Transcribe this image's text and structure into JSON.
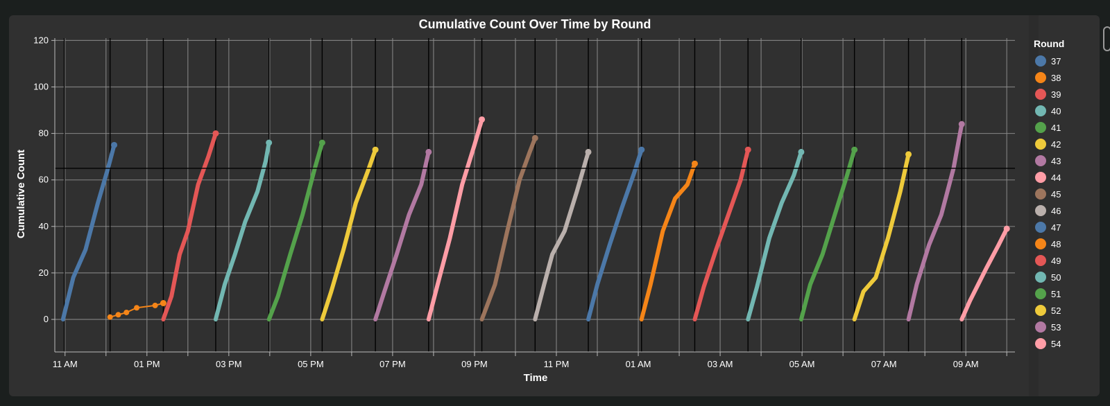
{
  "chart_data": {
    "type": "line",
    "title": "Cumulative Count Over Time by Round",
    "xlabel": "Time",
    "ylabel": "Cumulative Count",
    "x_unit": "hours from 10:00 AM",
    "xlim": [
      0.75,
      24.2
    ],
    "ylim": [
      -14,
      121
    ],
    "y_ticks": [
      0,
      20,
      40,
      60,
      80,
      100,
      120
    ],
    "x_ticks": [
      {
        "t": 1,
        "label": "11 AM"
      },
      {
        "t": 3,
        "label": "01 PM"
      },
      {
        "t": 5,
        "label": "03 PM"
      },
      {
        "t": 7,
        "label": "05 PM"
      },
      {
        "t": 9,
        "label": "07 PM"
      },
      {
        "t": 11,
        "label": "09 PM"
      },
      {
        "t": 13,
        "label": "11 PM"
      },
      {
        "t": 15,
        "label": "01 AM"
      },
      {
        "t": 17,
        "label": "03 AM"
      },
      {
        "t": 19,
        "label": "05 AM"
      },
      {
        "t": 21,
        "label": "07 AM"
      },
      {
        "t": 23,
        "label": "09 AM"
      }
    ],
    "grid": true,
    "reference_line_y": 65,
    "round_boundaries": [
      0.98,
      2.1,
      3.4,
      4.68,
      5.98,
      7.28,
      8.58,
      9.88,
      11.18,
      12.48,
      13.78,
      15.08,
      16.38,
      17.68,
      18.98,
      20.28,
      21.6,
      22.9
    ],
    "legend": {
      "title": "Round",
      "placement": "right"
    },
    "series": [
      {
        "name": "37",
        "color": "#4c78a8",
        "points": [
          [
            0.95,
            0
          ],
          [
            1.2,
            18
          ],
          [
            1.5,
            30
          ],
          [
            1.8,
            50
          ],
          [
            2.05,
            65
          ],
          [
            2.2,
            75
          ]
        ]
      },
      {
        "name": "38",
        "color": "#f58518",
        "points": [
          [
            2.1,
            1
          ],
          [
            2.3,
            2
          ],
          [
            2.5,
            3
          ],
          [
            2.75,
            5
          ],
          [
            3.2,
            6
          ],
          [
            3.4,
            7
          ]
        ]
      },
      {
        "name": "39",
        "color": "#e45756",
        "points": [
          [
            3.4,
            0
          ],
          [
            3.6,
            10
          ],
          [
            3.8,
            28
          ],
          [
            4.0,
            38
          ],
          [
            4.25,
            58
          ],
          [
            4.5,
            70
          ],
          [
            4.68,
            80
          ]
        ]
      },
      {
        "name": "40",
        "color": "#72b7b2",
        "points": [
          [
            4.68,
            0
          ],
          [
            4.9,
            15
          ],
          [
            5.15,
            28
          ],
          [
            5.4,
            42
          ],
          [
            5.7,
            55
          ],
          [
            5.9,
            68
          ],
          [
            5.98,
            76
          ]
        ]
      },
      {
        "name": "41",
        "color": "#54a24b",
        "points": [
          [
            5.98,
            0
          ],
          [
            6.2,
            10
          ],
          [
            6.5,
            28
          ],
          [
            6.8,
            45
          ],
          [
            7.1,
            65
          ],
          [
            7.28,
            76
          ]
        ]
      },
      {
        "name": "42",
        "color": "#eeca3b",
        "points": [
          [
            7.28,
            0
          ],
          [
            7.5,
            12
          ],
          [
            7.8,
            30
          ],
          [
            8.1,
            50
          ],
          [
            8.4,
            64
          ],
          [
            8.58,
            73
          ]
        ]
      },
      {
        "name": "43",
        "color": "#b279a2",
        "points": [
          [
            8.58,
            0
          ],
          [
            8.8,
            12
          ],
          [
            9.1,
            28
          ],
          [
            9.4,
            45
          ],
          [
            9.7,
            58
          ],
          [
            9.88,
            72
          ]
        ]
      },
      {
        "name": "44",
        "color": "#ff9da6",
        "points": [
          [
            9.88,
            0
          ],
          [
            10.1,
            15
          ],
          [
            10.4,
            35
          ],
          [
            10.7,
            58
          ],
          [
            11.0,
            75
          ],
          [
            11.18,
            86
          ]
        ]
      },
      {
        "name": "45",
        "color": "#9d755d",
        "points": [
          [
            11.18,
            0
          ],
          [
            11.5,
            15
          ],
          [
            11.8,
            38
          ],
          [
            12.1,
            60
          ],
          [
            12.35,
            72
          ],
          [
            12.48,
            78
          ]
        ]
      },
      {
        "name": "46",
        "color": "#bab0ac",
        "points": [
          [
            12.48,
            0
          ],
          [
            12.7,
            15
          ],
          [
            12.9,
            28
          ],
          [
            13.2,
            38
          ],
          [
            13.5,
            55
          ],
          [
            13.78,
            72
          ]
        ]
      },
      {
        "name": "47",
        "color": "#4c78a8",
        "points": [
          [
            13.78,
            0
          ],
          [
            14.0,
            15
          ],
          [
            14.3,
            32
          ],
          [
            14.6,
            48
          ],
          [
            14.9,
            63
          ],
          [
            15.08,
            73
          ]
        ]
      },
      {
        "name": "48",
        "color": "#f58518",
        "points": [
          [
            15.08,
            0
          ],
          [
            15.3,
            15
          ],
          [
            15.6,
            38
          ],
          [
            15.9,
            52
          ],
          [
            16.2,
            58
          ],
          [
            16.38,
            67
          ]
        ]
      },
      {
        "name": "49",
        "color": "#e45756",
        "points": [
          [
            16.38,
            0
          ],
          [
            16.6,
            14
          ],
          [
            16.9,
            30
          ],
          [
            17.2,
            45
          ],
          [
            17.5,
            60
          ],
          [
            17.68,
            73
          ]
        ]
      },
      {
        "name": "50",
        "color": "#72b7b2",
        "points": [
          [
            17.68,
            0
          ],
          [
            17.9,
            14
          ],
          [
            18.2,
            35
          ],
          [
            18.5,
            50
          ],
          [
            18.8,
            62
          ],
          [
            18.98,
            72
          ]
        ]
      },
      {
        "name": "51",
        "color": "#54a24b",
        "points": [
          [
            18.98,
            0
          ],
          [
            19.2,
            15
          ],
          [
            19.5,
            28
          ],
          [
            19.8,
            45
          ],
          [
            20.1,
            62
          ],
          [
            20.28,
            73
          ]
        ]
      },
      {
        "name": "52",
        "color": "#eeca3b",
        "points": [
          [
            20.28,
            0
          ],
          [
            20.5,
            12
          ],
          [
            20.8,
            18
          ],
          [
            21.1,
            35
          ],
          [
            21.4,
            55
          ],
          [
            21.6,
            71
          ]
        ]
      },
      {
        "name": "53",
        "color": "#b279a2",
        "points": [
          [
            21.6,
            0
          ],
          [
            21.8,
            15
          ],
          [
            22.1,
            32
          ],
          [
            22.4,
            45
          ],
          [
            22.7,
            65
          ],
          [
            22.9,
            84
          ]
        ]
      },
      {
        "name": "54",
        "color": "#ff9da6",
        "points": [
          [
            22.9,
            0
          ],
          [
            23.1,
            8
          ],
          [
            23.3,
            15
          ],
          [
            23.5,
            22
          ],
          [
            23.8,
            32
          ],
          [
            24.0,
            39
          ]
        ]
      }
    ]
  }
}
